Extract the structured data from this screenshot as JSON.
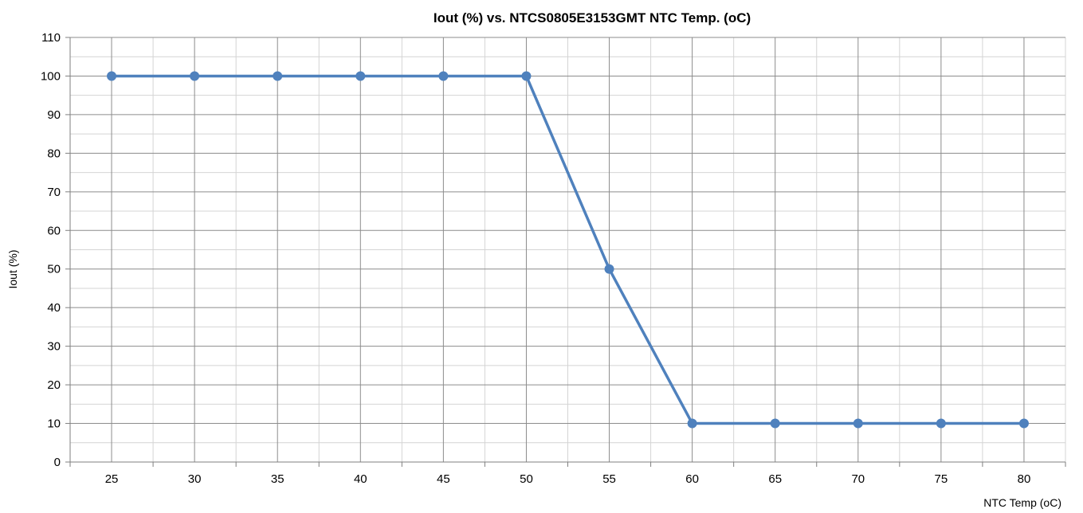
{
  "chart_data": {
    "type": "line",
    "title": "Iout (%) vs. NTCS0805E3153GMT NTC Temp. (oC)",
    "xlabel": "NTC Temp (oC)",
    "ylabel": "Iout (%)",
    "categories": [
      "25",
      "30",
      "35",
      "40",
      "45",
      "50",
      "55",
      "60",
      "65",
      "70",
      "75",
      "80"
    ],
    "x": [
      25,
      30,
      35,
      40,
      45,
      50,
      55,
      60,
      65,
      70,
      75,
      80
    ],
    "series": [
      {
        "values": [
          100,
          100,
          100,
          100,
          100,
          100,
          50,
          10,
          10,
          10,
          10,
          10
        ],
        "color": "#4f81bd"
      }
    ],
    "ylim": [
      0,
      110
    ],
    "y_ticks": [
      0,
      10,
      20,
      30,
      40,
      50,
      60,
      70,
      80,
      90,
      100,
      110
    ],
    "y_minor_step": 5,
    "grid": true,
    "legend": "none",
    "colors": {
      "major_grid": "#8c8c8c",
      "minor_grid": "#d4d4d4",
      "axis": "#7f7f7f"
    }
  }
}
